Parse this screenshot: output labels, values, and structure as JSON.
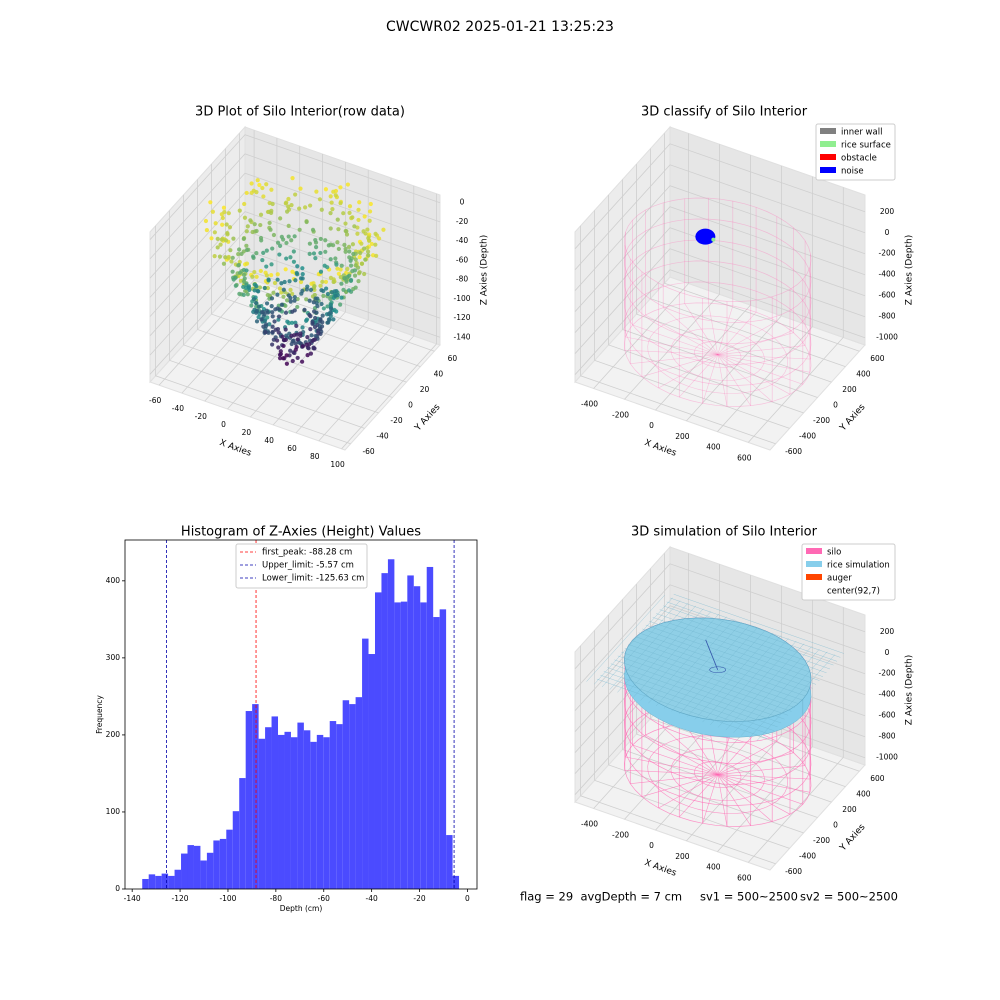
{
  "title": "CWCWR02 2025-01-21 13:25:23",
  "chart_data": [
    {
      "type": "scatter3d",
      "title": "3D Plot of Silo Interior(row data)",
      "xlabel": "X Axies",
      "ylabel": "Y Axies",
      "zlabel": "Z Axies (Depth)",
      "xlim": [
        -68,
        103
      ],
      "ylim": [
        -68,
        68
      ],
      "zlim": [
        -148,
        8
      ],
      "xticks": [
        -60,
        -40,
        -20,
        0,
        20,
        40,
        60,
        80,
        100
      ],
      "yticks": [
        -60,
        -40,
        -20,
        0,
        20,
        40,
        60
      ],
      "zticks": [
        0,
        -20,
        -40,
        -60,
        -80,
        -100,
        -120,
        -140
      ]
    },
    {
      "type": "scatter3d",
      "title": "3D classify of Silo Interior",
      "xlabel": "X Axies",
      "ylabel": "Y Axies",
      "zlabel": "Z Axies (Depth)",
      "xlim": [
        -520,
        740
      ],
      "ylim": [
        -680,
        680
      ],
      "zlim": [
        -1070,
        360
      ],
      "xticks": [
        -400,
        -200,
        0,
        200,
        400,
        600
      ],
      "yticks": [
        -600,
        -400,
        -200,
        0,
        200,
        400,
        600
      ],
      "zticks": [
        200,
        0,
        -200,
        -400,
        -600,
        -800,
        -1000
      ],
      "legend": [
        {
          "name": "inner wall",
          "color": "#808080"
        },
        {
          "name": "rice surface",
          "color": "#90ee90"
        },
        {
          "name": "obstacle",
          "color": "#ff0000"
        },
        {
          "name": "noise",
          "color": "#0000ff"
        }
      ]
    },
    {
      "type": "histogram",
      "title": "Histogram of Z-Axies (Height) Values",
      "xlabel": "Depth (cm)",
      "ylabel": "Frequency",
      "color": "#4b4bff",
      "bins": [
        -135.8,
        -133.1,
        -130.4,
        -127.7,
        -125.0,
        -122.3,
        -119.6,
        -116.9,
        -114.2,
        -111.5,
        -108.8,
        -106.1,
        -103.4,
        -100.7,
        -98.0,
        -95.3,
        -92.6,
        -89.9,
        -87.2,
        -84.5,
        -81.8,
        -79.1,
        -76.4,
        -73.7,
        -71.0,
        -68.3,
        -65.6,
        -62.9,
        -60.2,
        -57.5,
        -54.8,
        -52.1,
        -49.4,
        -46.7,
        -44.0,
        -41.3,
        -38.6,
        -35.9,
        -33.2,
        -30.5,
        -27.8,
        -25.1,
        -22.4,
        -19.7,
        -17.0,
        -14.3,
        -11.6,
        -8.9,
        -6.2,
        -3.5
      ],
      "counts": [
        13,
        19,
        17,
        20,
        17,
        25,
        46,
        57,
        56,
        37,
        47,
        63,
        65,
        77,
        101,
        144,
        231,
        240,
        195,
        210,
        224,
        200,
        204,
        197,
        216,
        206,
        191,
        200,
        197,
        218,
        214,
        245,
        240,
        249,
        325,
        305,
        385,
        410,
        428,
        372,
        373,
        407,
        393,
        372,
        418,
        353,
        363,
        70,
        17
      ],
      "xlim": [
        -143,
        4
      ],
      "ylim": [
        0,
        453
      ],
      "xticks": [
        -140,
        -120,
        -100,
        -80,
        -60,
        -40,
        -20,
        0
      ],
      "yticks": [
        0,
        100,
        200,
        300,
        400
      ],
      "vlines": [
        {
          "name": "first_peak: -88.28 cm",
          "value": -88.28,
          "color": "#ff0000"
        },
        {
          "name": "Upper_limit: -5.57 cm",
          "value": -5.57,
          "color": "#0000aa"
        },
        {
          "name": "Lower_limit: -125.63 cm",
          "value": -125.63,
          "color": "#0000aa"
        }
      ]
    },
    {
      "type": "surface3d",
      "title": "3D simulation of Silo Interior",
      "xlabel": "X Axies",
      "ylabel": "Y Axies",
      "zlabel": "Z Axies (Depth)",
      "xlim": [
        -520,
        740
      ],
      "ylim": [
        -680,
        680
      ],
      "zlim": [
        -1070,
        360
      ],
      "xticks": [
        -400,
        -200,
        0,
        200,
        400,
        600
      ],
      "yticks": [
        -600,
        -400,
        -200,
        0,
        200,
        400,
        600
      ],
      "zticks": [
        200,
        0,
        -200,
        -400,
        -600,
        -800,
        -1000
      ],
      "legend": [
        {
          "name": "silo",
          "color": "#ff69b4"
        },
        {
          "name": "rice simulation",
          "color": "#87ceeb"
        },
        {
          "name": "auger",
          "color": "#ff4500"
        },
        {
          "name": "center(92,7)",
          "color": "#ffffff"
        }
      ]
    }
  ],
  "annotations": [
    "flag = 29  avgDepth = 7 cm",
    "sv1 = 500~2500",
    "sv2 = 500~2500"
  ]
}
